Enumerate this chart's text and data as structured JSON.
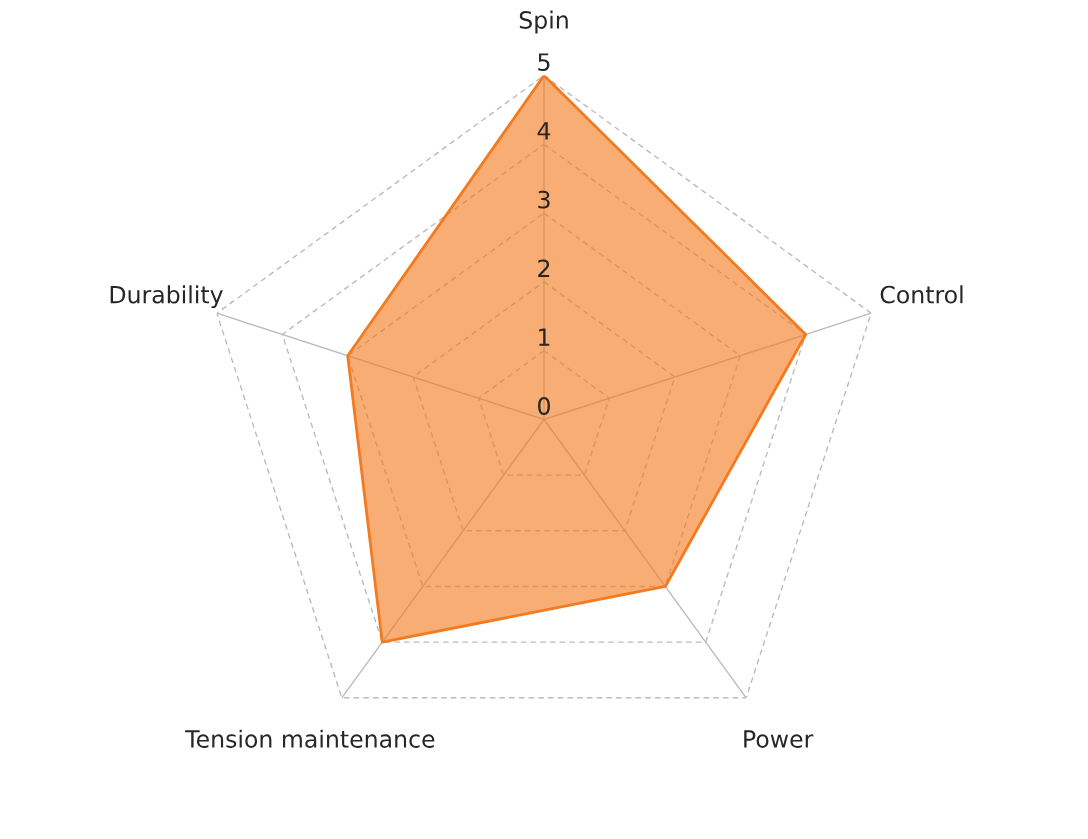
{
  "chart_data": {
    "type": "radar",
    "categories": [
      "Spin",
      "Control",
      "Power",
      "Tension maintenance",
      "Durability"
    ],
    "series": [
      {
        "color": "#f47a20",
        "values": [
          5,
          4,
          3,
          4,
          3
        ]
      }
    ],
    "ylim": [
      0,
      5
    ],
    "yticks": [
      0,
      1,
      2,
      3,
      4,
      5
    ],
    "grid": true
  }
}
